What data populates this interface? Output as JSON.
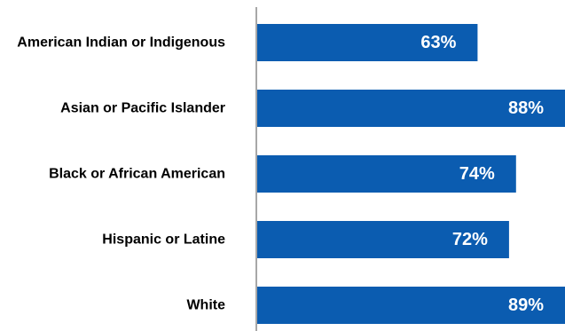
{
  "chart_data": {
    "type": "bar",
    "orientation": "horizontal",
    "categories": [
      "American Indian or Indigenous",
      "Asian or Pacific Islander",
      "Black or African American",
      "Hispanic or Latine",
      "White"
    ],
    "values": [
      63,
      88,
      74,
      72,
      89
    ],
    "value_labels": [
      "63%",
      "88%",
      "74%",
      "72%",
      "89%"
    ],
    "xlim": [
      0,
      88
    ],
    "grid": false,
    "legend": "none",
    "colors": {
      "bar": "#0b5cb0",
      "axis": "#8a8a8a",
      "value_text": "#ffffff",
      "category_text": "#000000"
    }
  }
}
